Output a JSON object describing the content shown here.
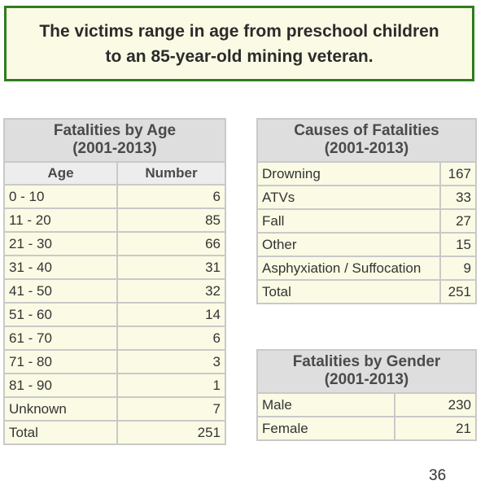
{
  "banner": {
    "line1": "The victims range in age from preschool children",
    "line2": "to an 85-year-old mining veteran."
  },
  "age_table": {
    "title_line1": "Fatalities by Age",
    "title_line2": "(2001-2013)",
    "col_age": "Age",
    "col_number": "Number",
    "rows": [
      {
        "label": "0 - 10",
        "value": "6"
      },
      {
        "label": "11 - 20",
        "value": "85"
      },
      {
        "label": "21 - 30",
        "value": "66"
      },
      {
        "label": "31 - 40",
        "value": "31"
      },
      {
        "label": "41 - 50",
        "value": "32"
      },
      {
        "label": "51 - 60",
        "value": "14"
      },
      {
        "label": "61 - 70",
        "value": "6"
      },
      {
        "label": "71 - 80",
        "value": "3"
      },
      {
        "label": "81 - 90",
        "value": "1"
      },
      {
        "label": "Unknown",
        "value": "7"
      },
      {
        "label": "Total",
        "value": "251"
      }
    ]
  },
  "causes_table": {
    "title_line1": "Causes of Fatalities",
    "title_line2": "(2001-2013)",
    "rows": [
      {
        "label": "Drowning",
        "value": "167"
      },
      {
        "label": "ATVs",
        "value": "33"
      },
      {
        "label": "Fall",
        "value": "27"
      },
      {
        "label": "Other",
        "value": "15"
      },
      {
        "label": "Asphyxiation / Suffocation",
        "value": "9"
      },
      {
        "label": "Total",
        "value": "251"
      }
    ]
  },
  "gender_table": {
    "title_line1": "Fatalities by Gender",
    "title_line2": "(2001-2013)",
    "rows": [
      {
        "label": "Male",
        "value": "230"
      },
      {
        "label": "Female",
        "value": "21"
      }
    ]
  },
  "page_number": "36"
}
